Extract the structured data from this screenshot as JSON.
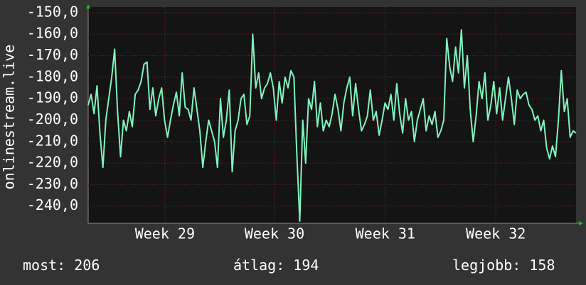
{
  "chart_data": {
    "type": "line",
    "ylabel": "onlinestream.live",
    "color": "#7ff2be",
    "values": [
      -193,
      -188,
      -197,
      -184,
      -206,
      -222,
      -200,
      -190,
      -180,
      -167,
      -196,
      -217,
      -200,
      -205,
      -196,
      -203,
      -188,
      -186,
      -182,
      -174,
      -173,
      -195,
      -185,
      -198,
      -190,
      -185,
      -200,
      -208,
      -200,
      -193,
      -187,
      -198,
      -178,
      -194,
      -195,
      -200,
      -185,
      -195,
      -205,
      -222,
      -210,
      -200,
      -205,
      -210,
      -222,
      -190,
      -208,
      -200,
      -186,
      -224,
      -205,
      -200,
      -190,
      -188,
      -202,
      -198,
      -160,
      -185,
      -178,
      -190,
      -185,
      -183,
      -178,
      -185,
      -200,
      -182,
      -192,
      -180,
      -185,
      -177,
      -180,
      -216,
      -247,
      -200,
      -220,
      -190,
      -195,
      -182,
      -203,
      -192,
      -205,
      -200,
      -203,
      -197,
      -188,
      -195,
      -205,
      -192,
      -185,
      -180,
      -198,
      -183,
      -195,
      -205,
      -202,
      -198,
      -186,
      -200,
      -196,
      -207,
      -200,
      -192,
      -195,
      -188,
      -200,
      -183,
      -197,
      -206,
      -190,
      -200,
      -196,
      -210,
      -200,
      -195,
      -190,
      -205,
      -198,
      -202,
      -196,
      -208,
      -205,
      -200,
      -162,
      -175,
      -182,
      -166,
      -178,
      -158,
      -185,
      -170,
      -195,
      -210,
      -198,
      -182,
      -190,
      -178,
      -200,
      -193,
      -182,
      -197,
      -185,
      -200,
      -190,
      -180,
      -190,
      -202,
      -186,
      -190,
      -188,
      -187,
      -193,
      -195,
      -200,
      -198,
      -205,
      -200,
      -213,
      -218,
      -212,
      -217,
      -200,
      -177,
      -196,
      -190,
      -208,
      -205,
      -206
    ],
    "xlim": [
      0,
      166
    ],
    "xticks": [
      {
        "value": 26.1,
        "label": "Week 29"
      },
      {
        "value": 63.4,
        "label": "Week 30"
      },
      {
        "value": 101.1,
        "label": "Week 31"
      },
      {
        "value": 138.7,
        "label": "Week 32"
      }
    ],
    "ylim": [
      -147.4,
      -248
    ],
    "yticks": [
      {
        "value": -150,
        "label": "-150,0"
      },
      {
        "value": -160,
        "label": "-160,0"
      },
      {
        "value": -170,
        "label": "-170,0"
      },
      {
        "value": -180,
        "label": "-180,0"
      },
      {
        "value": -190,
        "label": "-190,0"
      },
      {
        "value": -200,
        "label": "-200,0"
      },
      {
        "value": -210,
        "label": "-210,0"
      },
      {
        "value": -220,
        "label": "-220,0"
      },
      {
        "value": -230,
        "label": "-230,0"
      },
      {
        "value": -240,
        "label": "-240,0"
      }
    ],
    "grid": true,
    "stats": [
      {
        "label": "most:",
        "value": 206
      },
      {
        "label": "átlag:",
        "value": 194
      },
      {
        "label": "legjobb:",
        "value": 158
      }
    ]
  }
}
